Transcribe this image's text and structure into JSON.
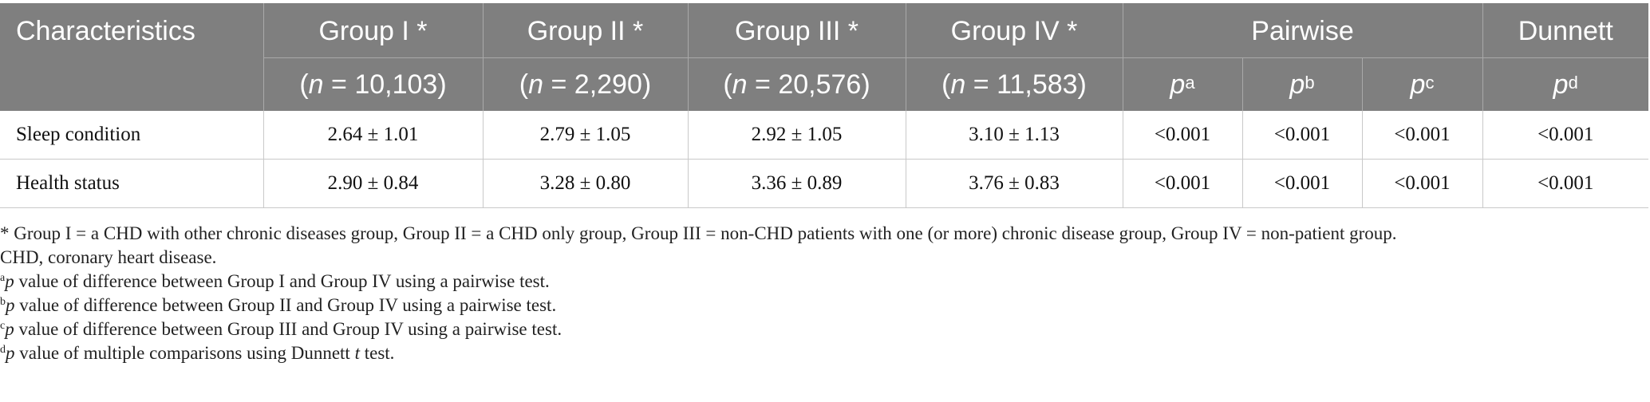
{
  "header": {
    "characteristics": "Characteristics",
    "groups": [
      {
        "label": "Group I *",
        "n": "(n = 10,103)",
        "n_prefix": "(",
        "n_var": "n",
        "n_value": " = 10,103)"
      },
      {
        "label": "Group II *",
        "n": "(n = 2,290)",
        "n_prefix": "(",
        "n_var": "n",
        "n_value": " = 2,290)"
      },
      {
        "label": "Group III *",
        "n": "(n = 20,576)",
        "n_prefix": "(",
        "n_var": "n",
        "n_value": " = 20,576)"
      },
      {
        "label": "Group IV *",
        "n": "(n = 11,583)",
        "n_prefix": "(",
        "n_var": "n",
        "n_value": " = 11,583)"
      }
    ],
    "pairwise": "Pairwise",
    "dunnett": "Dunnett",
    "p_symbol": "p",
    "p_sup": [
      "a",
      "b",
      "c",
      "d"
    ]
  },
  "rows": [
    {
      "label": "Sleep condition",
      "values": [
        "2.64 ± 1.01",
        "2.79 ± 1.05",
        "2.92 ± 1.05",
        "3.10 ± 1.13"
      ],
      "pvalues": [
        "<0.001",
        "<0.001",
        "<0.001",
        "<0.001"
      ]
    },
    {
      "label": "Health status",
      "values": [
        "2.90 ± 0.84",
        "3.28 ± 0.80",
        "3.36 ± 0.89",
        "3.76 ± 0.83"
      ],
      "pvalues": [
        "<0.001",
        "<0.001",
        "<0.001",
        "<0.001"
      ]
    }
  ],
  "footnotes": {
    "groups_def": "* Group I = a CHD with other chronic diseases group, Group II = a CHD only group, Group III = non-CHD patients with one (or more) chronic disease group, Group IV = non-patient group.",
    "abbrev": "CHD, coronary heart disease.",
    "notes": [
      {
        "mark": "a",
        "italic": "p",
        "text": " value of difference between Group I and Group IV using a pairwise test."
      },
      {
        "mark": "b",
        "italic": "p",
        "text": " value of difference between Group II and Group IV using a pairwise test."
      },
      {
        "mark": "c",
        "italic": "p",
        "text": " value of difference between Group III and Group IV using a pairwise test."
      },
      {
        "mark": "d",
        "italic": "p",
        "text": " value of multiple comparisons using Dunnett ",
        "italic2": "t",
        "text2": " test."
      }
    ]
  }
}
